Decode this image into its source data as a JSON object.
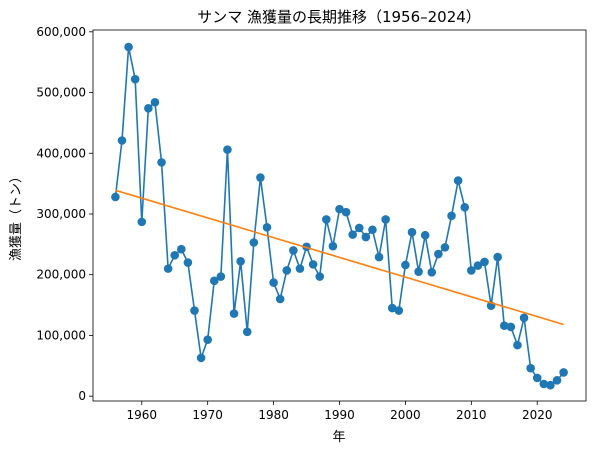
{
  "chart_data": {
    "type": "line",
    "title": "サンマ 漁獲量の長期推移（1956–2024）",
    "xlabel": "年",
    "ylabel": "漁獲量（トン）",
    "xlim": [
      1952.6,
      2027.4
    ],
    "ylim": [
      -8000,
      603000
    ],
    "x_ticks": [
      1960,
      1970,
      1980,
      1990,
      2000,
      2010,
      2020
    ],
    "x_tick_labels": [
      "1960",
      "1970",
      "1980",
      "1990",
      "2000",
      "2010",
      "2020"
    ],
    "y_ticks": [
      0,
      100000,
      200000,
      300000,
      400000,
      500000,
      600000
    ],
    "y_tick_labels": [
      "0",
      "100,000",
      "200,000",
      "300,000",
      "400,000",
      "500,000",
      "600,000"
    ],
    "grid": false,
    "series": [
      {
        "color": "#1f77b4",
        "marker": "circle",
        "x": [
          1956,
          1957,
          1958,
          1959,
          1960,
          1961,
          1962,
          1963,
          1964,
          1965,
          1966,
          1967,
          1968,
          1969,
          1970,
          1971,
          1972,
          1973,
          1974,
          1975,
          1976,
          1977,
          1978,
          1979,
          1980,
          1981,
          1982,
          1983,
          1984,
          1985,
          1986,
          1987,
          1988,
          1989,
          1990,
          1991,
          1992,
          1993,
          1994,
          1995,
          1996,
          1997,
          1998,
          1999,
          2000,
          2001,
          2002,
          2003,
          2004,
          2005,
          2006,
          2007,
          2008,
          2009,
          2010,
          2011,
          2012,
          2013,
          2014,
          2015,
          2016,
          2017,
          2018,
          2019,
          2020,
          2021,
          2022,
          2023,
          2024
        ],
        "values": [
          328000,
          421000,
          575000,
          522000,
          287000,
          474000,
          484000,
          385000,
          210000,
          232000,
          242000,
          220000,
          141000,
          63000,
          93000,
          190000,
          197000,
          406000,
          136000,
          222000,
          106000,
          253000,
          360000,
          278000,
          187000,
          160000,
          207000,
          240000,
          210000,
          246000,
          217000,
          197000,
          291000,
          247000,
          308000,
          303000,
          266000,
          277000,
          262000,
          274000,
          229000,
          291000,
          145000,
          141000,
          216000,
          270000,
          205000,
          265000,
          204000,
          234000,
          245000,
          297000,
          355000,
          311000,
          207000,
          215000,
          221000,
          149000,
          229000,
          116000,
          114000,
          84000,
          129000,
          46000,
          30000,
          20000,
          18000,
          26000,
          39000
        ]
      },
      {
        "color": "#ff7f0e",
        "marker": "none",
        "x": [
          1956,
          2024
        ],
        "values": [
          339000,
          118000
        ]
      }
    ]
  }
}
